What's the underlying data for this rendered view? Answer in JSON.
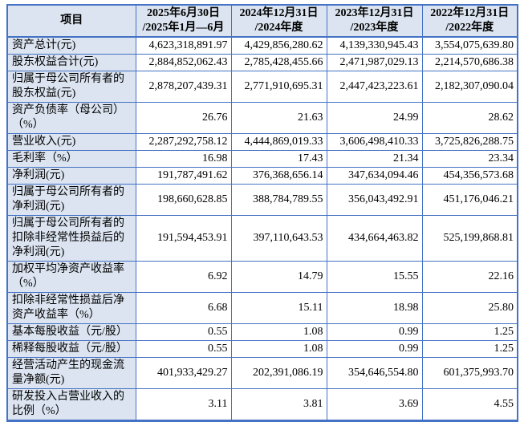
{
  "colors": {
    "border": "#4472c4",
    "label_bg": "#dbe4f0",
    "text": "#000000"
  },
  "table": {
    "header": {
      "item_label": "项目",
      "periods": [
        {
          "line1": "2025年6月30日",
          "line2": "/2025年1月—6月"
        },
        {
          "line1": "2024年12月31日",
          "line2": "/2024年度"
        },
        {
          "line1": "2023年12月31日",
          "line2": "/2023年度"
        },
        {
          "line1": "2022年12月31日",
          "line2": "/2022年度"
        }
      ]
    },
    "rows": [
      {
        "label": "资产总计(元)",
        "values": [
          "4,623,318,891.97",
          "4,429,856,280.62",
          "4,139,330,945.43",
          "3,554,075,639.80"
        ]
      },
      {
        "label": "股东权益合计(元)",
        "values": [
          "2,884,852,062.43",
          "2,785,428,455.66",
          "2,471,987,029.13",
          "2,214,570,686.38"
        ]
      },
      {
        "label": "归属于母公司所有者的股东权益(元)",
        "values": [
          "2,878,207,439.31",
          "2,771,910,695.31",
          "2,447,423,223.61",
          "2,182,307,090.04"
        ]
      },
      {
        "label": "资产负债率（母公司）（%）",
        "values": [
          "26.76",
          "21.63",
          "24.99",
          "28.62"
        ]
      },
      {
        "label": "营业收入(元)",
        "values": [
          "2,287,292,758.12",
          "4,444,869,019.33",
          "3,606,498,410.33",
          "3,725,826,288.75"
        ]
      },
      {
        "label": "毛利率（%）",
        "values": [
          "16.98",
          "17.43",
          "21.34",
          "23.34"
        ]
      },
      {
        "label": "净利润(元)",
        "values": [
          "191,787,491.62",
          "376,368,656.14",
          "347,634,094.46",
          "454,356,573.68"
        ]
      },
      {
        "label": "归属于母公司所有者的净利润(元)",
        "values": [
          "198,660,628.85",
          "388,784,789.55",
          "356,043,492.91",
          "451,176,046.21"
        ]
      },
      {
        "label": "归属于母公司所有者的扣除非经常性损益后的净利润(元)",
        "values": [
          "191,594,453.91",
          "397,110,643.53",
          "434,664,463.82",
          "525,199,868.81"
        ]
      },
      {
        "label": "加权平均净资产收益率（%）",
        "values": [
          "6.92",
          "14.79",
          "15.55",
          "22.16"
        ]
      },
      {
        "label": "扣除非经常性损益后净资产收益率（%）",
        "values": [
          "6.68",
          "15.11",
          "18.98",
          "25.80"
        ]
      },
      {
        "label": "基本每股收益（元/股）",
        "values": [
          "0.55",
          "1.08",
          "0.99",
          "1.25"
        ]
      },
      {
        "label": "稀释每股收益（元/股）",
        "values": [
          "0.55",
          "1.08",
          "0.99",
          "1.25"
        ]
      },
      {
        "label": "经营活动产生的现金流量净额(元)",
        "values": [
          "401,933,429.27",
          "202,391,086.19",
          "354,646,554.80",
          "601,375,993.70"
        ]
      },
      {
        "label": "研发投入占营业收入的比例（%）",
        "values": [
          "3.11",
          "3.81",
          "3.69",
          "4.55"
        ]
      }
    ]
  }
}
